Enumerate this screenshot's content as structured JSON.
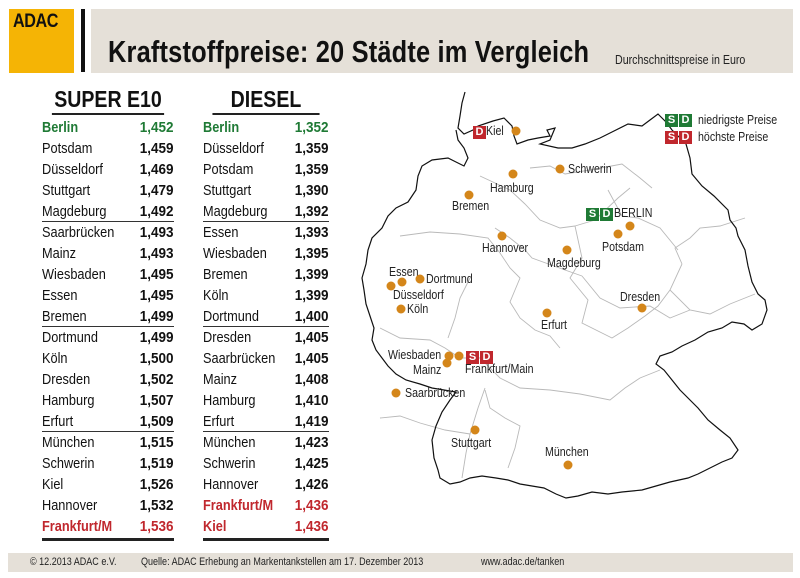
{
  "brand": {
    "logo_text": "ADAC",
    "logo_color": "#f5b405"
  },
  "header": {
    "title": "Kraftstoffpreise: 20 Städte im Vergleich",
    "subtitle": "Durchschnittspreise in Euro"
  },
  "colors": {
    "lowest": "#1f7a35",
    "highest": "#c0272d",
    "city_dot": "#d4861a",
    "header_bg": "#e5e0d8"
  },
  "super_e10": {
    "heading": "SUPER E10",
    "rows": [
      {
        "city": "Berlin",
        "price": "1,452",
        "status": "low"
      },
      {
        "city": "Potsdam",
        "price": "1,459"
      },
      {
        "city": "Düsseldorf",
        "price": "1,469"
      },
      {
        "city": "Stuttgart",
        "price": "1,479"
      },
      {
        "city": "Magdeburg",
        "price": "1,492"
      },
      {
        "city": "Saarbrücken",
        "price": "1,493"
      },
      {
        "city": "Mainz",
        "price": "1,493"
      },
      {
        "city": "Wiesbaden",
        "price": "1,495"
      },
      {
        "city": "Essen",
        "price": "1,495"
      },
      {
        "city": "Bremen",
        "price": "1,499"
      },
      {
        "city": "Dortmund",
        "price": "1,499"
      },
      {
        "city": "Köln",
        "price": "1,500"
      },
      {
        "city": "Dresden",
        "price": "1,502"
      },
      {
        "city": "Hamburg",
        "price": "1,507"
      },
      {
        "city": "Erfurt",
        "price": "1,509"
      },
      {
        "city": "München",
        "price": "1,515"
      },
      {
        "city": "Schwerin",
        "price": "1,519"
      },
      {
        "city": "Kiel",
        "price": "1,526"
      },
      {
        "city": "Hannover",
        "price": "1,532"
      },
      {
        "city": "Frankfurt/M",
        "price": "1,536",
        "status": "high"
      }
    ]
  },
  "diesel": {
    "heading": "DIESEL",
    "rows": [
      {
        "city": "Berlin",
        "price": "1,352",
        "status": "low"
      },
      {
        "city": "Düsseldorf",
        "price": "1,359"
      },
      {
        "city": "Potsdam",
        "price": "1,359"
      },
      {
        "city": "Stuttgart",
        "price": "1,390"
      },
      {
        "city": "Magdeburg",
        "price": "1,392"
      },
      {
        "city": "Essen",
        "price": "1,393"
      },
      {
        "city": "Wiesbaden",
        "price": "1,395"
      },
      {
        "city": "Bremen",
        "price": "1,399"
      },
      {
        "city": "Köln",
        "price": "1,399"
      },
      {
        "city": "Dortmund",
        "price": "1,400"
      },
      {
        "city": "Dresden",
        "price": "1,405"
      },
      {
        "city": "Saarbrücken",
        "price": "1,405"
      },
      {
        "city": "Mainz",
        "price": "1,408"
      },
      {
        "city": "Hamburg",
        "price": "1,410"
      },
      {
        "city": "Erfurt",
        "price": "1,419"
      },
      {
        "city": "München",
        "price": "1,423"
      },
      {
        "city": "Schwerin",
        "price": "1,425"
      },
      {
        "city": "Hannover",
        "price": "1,426"
      },
      {
        "city": "Frankfurt/M",
        "price": "1,436",
        "status": "high"
      },
      {
        "city": "Kiel",
        "price": "1,436",
        "status": "high"
      }
    ]
  },
  "legend": {
    "badge_s": "S",
    "badge_d": "D",
    "lowest_label": "niedrigste Preise",
    "highest_label": "höchste Preise"
  },
  "map": {
    "cities": [
      {
        "name": "Kiel",
        "badges": [
          "D"
        ],
        "badge_color": "red"
      },
      {
        "name": "Schwerin"
      },
      {
        "name": "Hamburg"
      },
      {
        "name": "Bremen"
      },
      {
        "name": "Hannover"
      },
      {
        "name": "Magdeburg"
      },
      {
        "name": "BERLIN",
        "badges": [
          "S",
          "D"
        ],
        "badge_color": "green"
      },
      {
        "name": "Potsdam"
      },
      {
        "name": "Essen"
      },
      {
        "name": "Dortmund"
      },
      {
        "name": "Düsseldorf"
      },
      {
        "name": "Köln"
      },
      {
        "name": "Dresden"
      },
      {
        "name": "Erfurt"
      },
      {
        "name": "Wiesbaden"
      },
      {
        "name": "Mainz"
      },
      {
        "name": "Frankfurt/Main",
        "badges": [
          "S",
          "D"
        ],
        "badge_color": "red"
      },
      {
        "name": "Saarbrücken"
      },
      {
        "name": "Stuttgart"
      },
      {
        "name": "München"
      }
    ]
  },
  "footer": {
    "copyright": "© 12.2013  ADAC e.V.",
    "source": "Quelle: ADAC Erhebung an Markentankstellen am 17. Dezember 2013",
    "url": "www.adac.de/tanken"
  }
}
